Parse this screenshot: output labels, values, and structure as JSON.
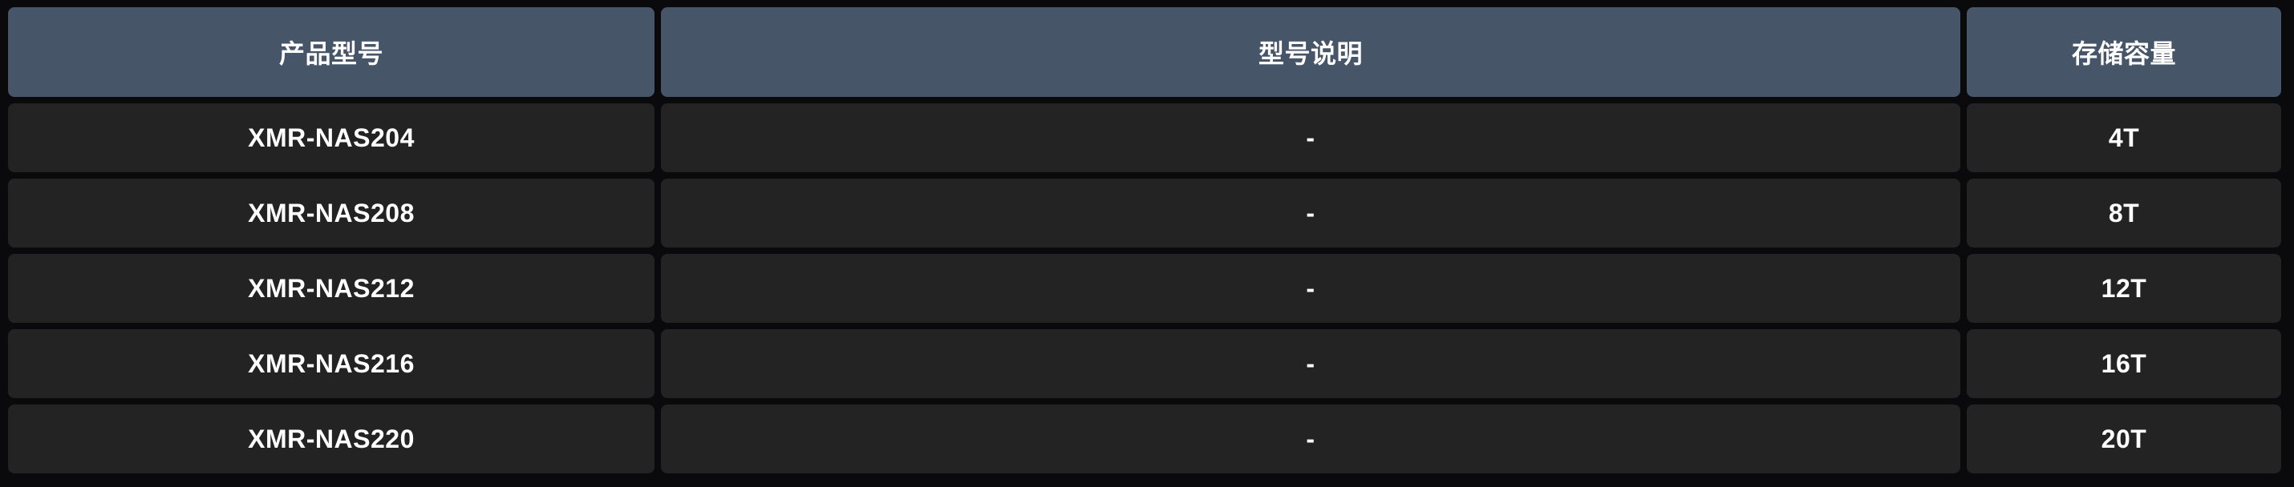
{
  "table": {
    "headers": [
      "产品型号",
      "型号说明",
      "存储容量"
    ],
    "rows": [
      {
        "model": "XMR-NAS204",
        "description": "-",
        "capacity": "4T"
      },
      {
        "model": "XMR-NAS208",
        "description": "-",
        "capacity": "8T"
      },
      {
        "model": "XMR-NAS212",
        "description": "-",
        "capacity": "12T"
      },
      {
        "model": "XMR-NAS216",
        "description": "-",
        "capacity": "16T"
      },
      {
        "model": "XMR-NAS220",
        "description": "-",
        "capacity": "20T"
      }
    ],
    "colors": {
      "page_background": "#0a0a0c",
      "header_background": "#475569",
      "row_background": "#232323",
      "text": "#ffffff"
    }
  }
}
